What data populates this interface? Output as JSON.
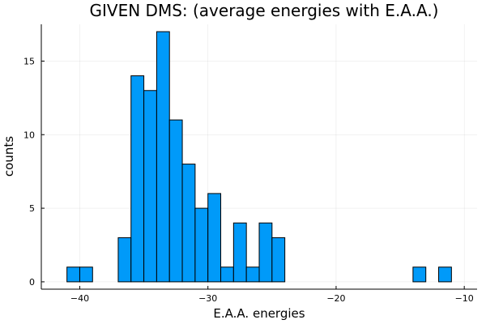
{
  "chart_data": {
    "type": "bar",
    "title": "GIVEN DMS: (average energies with E.A.A.)",
    "xlabel": "E.A.A. energies",
    "ylabel": "counts",
    "xlim": [
      -43,
      -9
    ],
    "ylim": [
      -0.5,
      17.5
    ],
    "xticks": [
      -40,
      -30,
      -20,
      -10
    ],
    "xtick_labels": [
      "−40",
      "−30",
      "−20",
      "−10"
    ],
    "yticks": [
      0,
      5,
      10,
      15
    ],
    "ytick_labels": [
      "0",
      "5",
      "10",
      "15"
    ],
    "grid": true,
    "legend": "none",
    "bar_color": "#009af9",
    "bin_width": 1,
    "bins": [
      {
        "x0": -41,
        "x1": -40,
        "count": 1
      },
      {
        "x0": -40,
        "x1": -39,
        "count": 1
      },
      {
        "x0": -37,
        "x1": -36,
        "count": 3
      },
      {
        "x0": -36,
        "x1": -35,
        "count": 14
      },
      {
        "x0": -35,
        "x1": -34,
        "count": 13
      },
      {
        "x0": -34,
        "x1": -33,
        "count": 17
      },
      {
        "x0": -33,
        "x1": -32,
        "count": 11
      },
      {
        "x0": -32,
        "x1": -31,
        "count": 8
      },
      {
        "x0": -31,
        "x1": -30,
        "count": 5
      },
      {
        "x0": -30,
        "x1": -29,
        "count": 6
      },
      {
        "x0": -29,
        "x1": -28,
        "count": 1
      },
      {
        "x0": -28,
        "x1": -27,
        "count": 4
      },
      {
        "x0": -27,
        "x1": -26,
        "count": 1
      },
      {
        "x0": -26,
        "x1": -25,
        "count": 4
      },
      {
        "x0": -25,
        "x1": -24,
        "count": 3
      },
      {
        "x0": -14,
        "x1": -13,
        "count": 1
      },
      {
        "x0": -12,
        "x1": -11,
        "count": 1
      }
    ]
  }
}
